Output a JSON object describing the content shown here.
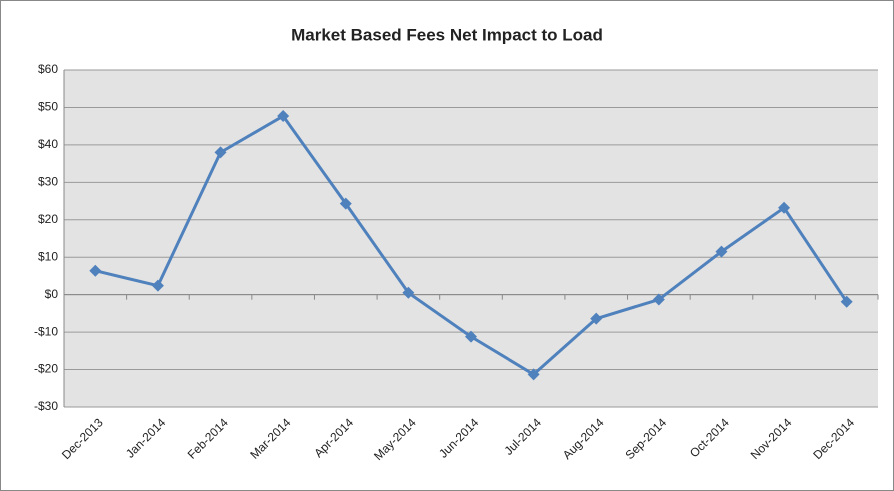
{
  "chart_data": {
    "type": "line",
    "title": "Market Based Fees Net Impact to Load",
    "categories": [
      "Dec-2013",
      "Jan-2014",
      "Feb-2014",
      "Mar-2014",
      "Apr-2014",
      "May-2014",
      "Jun-2014",
      "Jul-2014",
      "Aug-2014",
      "Sep-2014",
      "Oct-2014",
      "Nov-2014",
      "Dec-2014"
    ],
    "series": [
      {
        "color": "#4f81bd",
        "values": [
          6.4,
          2.4,
          38,
          47.7,
          24.3,
          0.5,
          -11.2,
          -21.3,
          -6.4,
          -1.3,
          11.5,
          23.2,
          -1.9
        ]
      }
    ],
    "ylim": [
      -30,
      60
    ],
    "yticks": [
      {
        "value": -30,
        "label": "-$30"
      },
      {
        "value": -20,
        "label": "-$20"
      },
      {
        "value": -10,
        "label": "-$10"
      },
      {
        "value": 0,
        "label": "$0"
      },
      {
        "value": 10,
        "label": "$10"
      },
      {
        "value": 20,
        "label": "$20"
      },
      {
        "value": 30,
        "label": "$30"
      },
      {
        "value": 40,
        "label": "$40"
      },
      {
        "value": 50,
        "label": "$50"
      },
      {
        "value": 60,
        "label": "$60"
      }
    ],
    "grid": true
  }
}
